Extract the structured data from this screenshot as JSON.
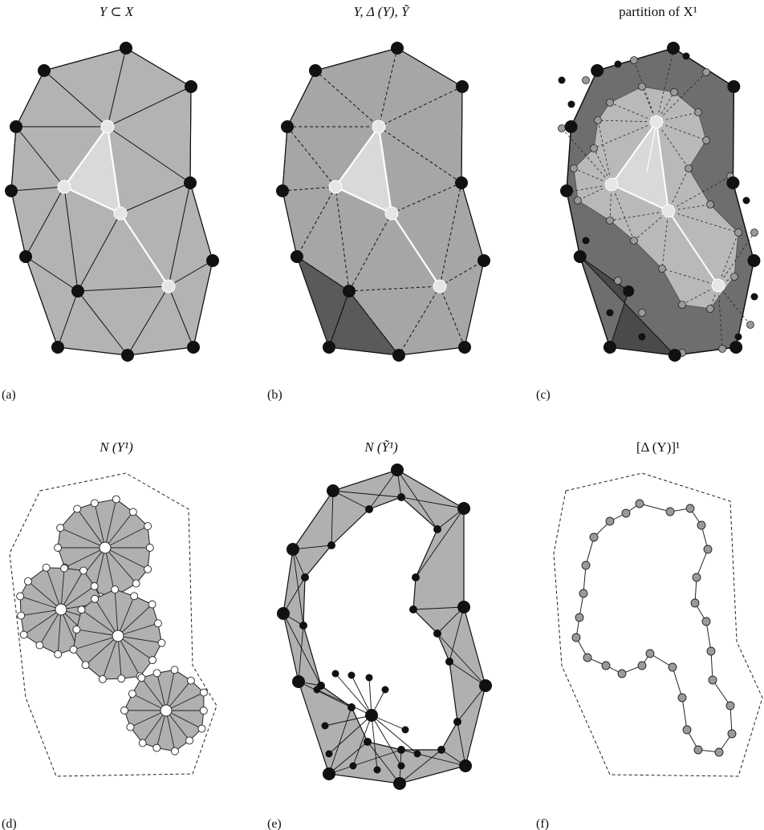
{
  "figure": {
    "panels": [
      {
        "id": "a",
        "title": "Y ⊂ X",
        "label": "(a)"
      },
      {
        "id": "b",
        "title": "Y, Δ (Y), Ỹ",
        "label": "(b)"
      },
      {
        "id": "c",
        "title": "partition of X¹",
        "label": "(c)"
      },
      {
        "id": "d",
        "title": "N (Y¹)",
        "label": "(d)"
      },
      {
        "id": "e",
        "title": "N (Ỹ¹)",
        "label": "(e)"
      },
      {
        "id": "f",
        "title": "[Δ (Y)]¹",
        "label": "(f)"
      }
    ],
    "colors": {
      "region_fill": "#b3b3b3",
      "region_fill_b": "#a6a6a6",
      "dark_region": "#5a5a5a",
      "partition_dark": "#6e6e6e",
      "partition_light": "#b9b9b9",
      "partition_mid": "#8c8c8c",
      "highlight_triangle": "#d9d9d9",
      "black_vertex": "#111111",
      "white_vertex": "#ffffff",
      "gray_vertex": "#9a9a9a",
      "light_vertex": "#e6e6e6"
    }
  }
}
